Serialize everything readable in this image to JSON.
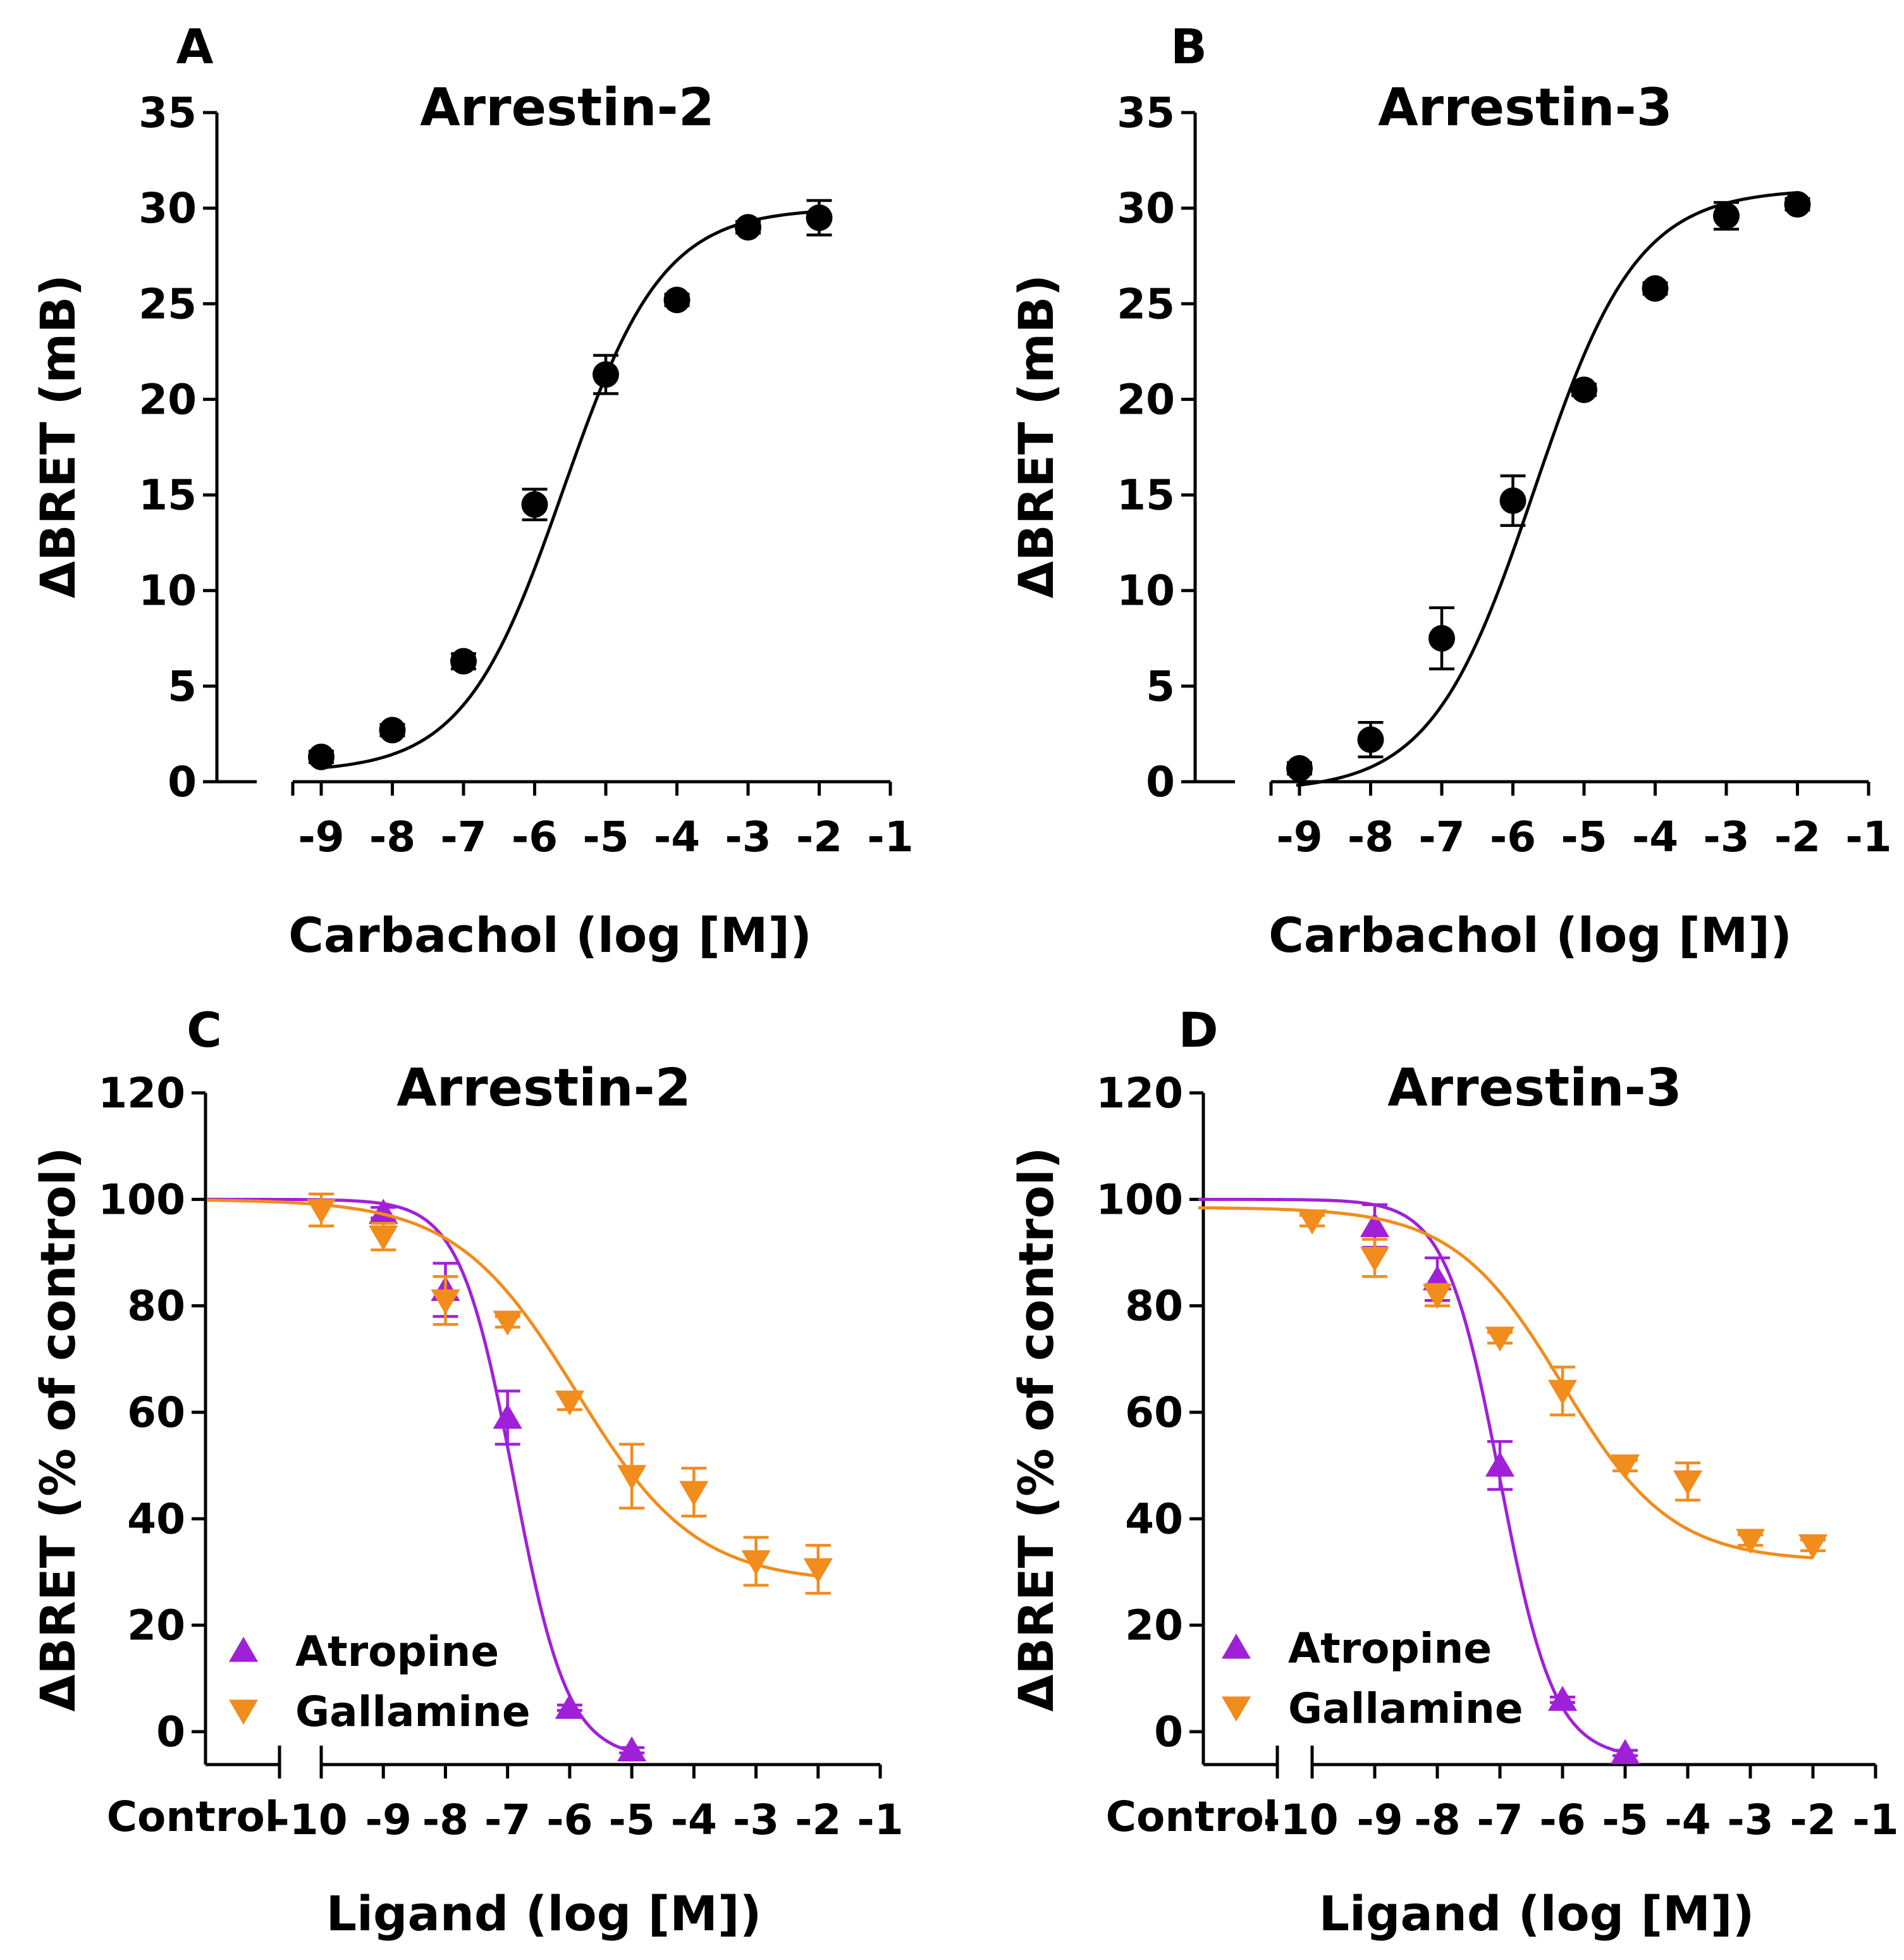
{
  "colors": {
    "black": "#000000",
    "atropine": "#A020D8",
    "gallamine": "#F28C1C"
  },
  "chart_data": [
    {
      "panel": "A",
      "type": "scatter",
      "title": "Arrestin-2",
      "xlabel": "Carbachol (log [M])",
      "ylabel": "ΔBRET (mB)",
      "xlim": [
        -9.4,
        -0.9
      ],
      "ylim": [
        0,
        35
      ],
      "xticks": [
        -9,
        -8,
        -7,
        -6,
        -5,
        -4,
        -3,
        -2,
        -1
      ],
      "xtick_labels": [
        "-9",
        "-8",
        "-7",
        "-6",
        "-5",
        "-4",
        "-3",
        "-2",
        "-1"
      ],
      "yticks": [
        0,
        5,
        10,
        15,
        20,
        25,
        30,
        35
      ],
      "ytick_labels": [
        "0",
        "5",
        "10",
        "15",
        "20",
        "25",
        "30",
        "35"
      ],
      "series": [
        {
          "name": "Carbachol",
          "color": "#000000",
          "marker": "circle",
          "x": [
            -9,
            -8,
            -7,
            -6,
            -5,
            -4,
            -3,
            -2
          ],
          "y": [
            1.3,
            2.7,
            6.3,
            14.5,
            21.3,
            25.2,
            29.0,
            29.5
          ],
          "err": [
            0.3,
            0.3,
            0.4,
            0.8,
            1.0,
            0.3,
            0.3,
            0.9
          ],
          "fit": {
            "bottom": 0.5,
            "top": 30.0,
            "logEC50": -5.6,
            "hill": 0.62
          }
        }
      ]
    },
    {
      "panel": "B",
      "type": "scatter",
      "title": "Arrestin-3",
      "xlabel": "Carbachol (log [M])",
      "ylabel": "ΔBRET (mB)",
      "xlim": [
        -9.4,
        -0.9
      ],
      "ylim": [
        0,
        35
      ],
      "xticks": [
        -9,
        -8,
        -7,
        -6,
        -5,
        -4,
        -3,
        -2,
        -1
      ],
      "xtick_labels": [
        "-9",
        "-8",
        "-7",
        "-6",
        "-5",
        "-4",
        "-3",
        "-2",
        "-1"
      ],
      "yticks": [
        0,
        5,
        10,
        15,
        20,
        25,
        30,
        35
      ],
      "ytick_labels": [
        "0",
        "5",
        "10",
        "15",
        "20",
        "25",
        "30",
        "35"
      ],
      "series": [
        {
          "name": "Carbachol",
          "color": "#000000",
          "marker": "circle",
          "x": [
            -9,
            -8,
            -7,
            -6,
            -5,
            -4,
            -3,
            -2
          ],
          "y": [
            0.7,
            2.2,
            7.5,
            14.7,
            20.5,
            25.8,
            29.6,
            30.2
          ],
          "err": [
            0.3,
            0.9,
            1.6,
            1.3,
            0.3,
            0.3,
            0.7,
            0.3
          ],
          "fit": {
            "bottom": -0.5,
            "top": 31.0,
            "logEC50": -5.7,
            "hill": 0.6
          }
        }
      ]
    },
    {
      "panel": "C",
      "type": "scatter",
      "title": "Arrestin-2",
      "xlabel": "Ligand (log [M])",
      "ylabel": "ΔBRET  (% of control)",
      "xlim": [
        -11.8,
        -0.9
      ],
      "ylim": [
        -5,
        120
      ],
      "control_label": "Control",
      "xticks": [
        -10,
        -9,
        -8,
        -7,
        -6,
        -5,
        -4,
        -3,
        -2,
        -1
      ],
      "xtick_labels": [
        "-10",
        "-9",
        "-8",
        "-7",
        "-6",
        "-5",
        "-4",
        "-3",
        "-2",
        "-1"
      ],
      "yticks": [
        0,
        20,
        40,
        60,
        80,
        100,
        120
      ],
      "ytick_labels": [
        "0",
        "20",
        "40",
        "60",
        "80",
        "100",
        "120"
      ],
      "legend": [
        "Atropine",
        "Gallamine"
      ],
      "legend_position": "bottom-left",
      "series": [
        {
          "name": "Atropine",
          "color": "#A020D8",
          "marker": "triangle-up",
          "x": [
            -9,
            -8,
            -7,
            -6,
            -5
          ],
          "y": [
            97.5,
            83,
            59,
            4.5,
            -3.5
          ],
          "err": [
            1.0,
            5.0,
            5.0,
            0.5,
            0.5
          ],
          "fit": {
            "bottom": -5,
            "top": 100,
            "logIC50": -6.9,
            "hill": 1.0
          }
        },
        {
          "name": "Gallamine",
          "color": "#F28C1C",
          "marker": "triangle-down",
          "x": [
            -10,
            -9,
            -8,
            -7,
            -6,
            -5,
            -4,
            -3,
            -2
          ],
          "y": [
            98,
            93,
            81,
            77,
            62,
            48,
            45,
            32,
            30.5
          ],
          "err": [
            3.0,
            2.5,
            4.5,
            1.0,
            1.5,
            6.0,
            4.5,
            4.5,
            4.5
          ],
          "fit": {
            "bottom": 28,
            "top": 100,
            "logIC50": -5.9,
            "hill": 0.45
          }
        }
      ]
    },
    {
      "panel": "D",
      "type": "scatter",
      "title": "Arrestin-3",
      "xlabel": "Ligand (log [M])",
      "ylabel": "ΔBRET  (% of control)",
      "xlim": [
        -11.8,
        -0.9
      ],
      "ylim": [
        -5,
        120
      ],
      "control_label": "Control",
      "xticks": [
        -10,
        -9,
        -8,
        -7,
        -6,
        -5,
        -4,
        -3,
        -2,
        -1
      ],
      "xtick_labels": [
        "-10",
        "-9",
        "-8",
        "-7",
        "-6",
        "-5",
        "-4",
        "-3",
        "-2",
        "-1"
      ],
      "yticks": [
        0,
        20,
        40,
        60,
        80,
        100,
        120
      ],
      "ytick_labels": [
        "0",
        "20",
        "40",
        "60",
        "80",
        "100",
        "120"
      ],
      "legend": [
        "Atropine",
        "Gallamine"
      ],
      "legend_position": "bottom-left",
      "series": [
        {
          "name": "Atropine",
          "color": "#A020D8",
          "marker": "triangle-up",
          "x": [
            -9,
            -8,
            -7,
            -6,
            -5
          ],
          "y": [
            95,
            85,
            50,
            6,
            -4
          ],
          "err": [
            4.0,
            4.0,
            4.5,
            0.5,
            0.5
          ],
          "fit": {
            "bottom": -5,
            "top": 100,
            "logIC50": -7.0,
            "hill": 1.0
          }
        },
        {
          "name": "Gallamine",
          "color": "#F28C1C",
          "marker": "triangle-down",
          "x": [
            -10,
            -9,
            -8,
            -7,
            -6,
            -5,
            -4,
            -3,
            -2
          ],
          "y": [
            96,
            89,
            82,
            74,
            64,
            50,
            47,
            36,
            35
          ],
          "err": [
            1.0,
            3.5,
            2.0,
            1.0,
            4.5,
            1.0,
            3.5,
            1.0,
            1.0
          ],
          "fit": {
            "bottom": 32,
            "top": 98.5,
            "logIC50": -6.0,
            "hill": 0.5
          }
        }
      ]
    }
  ]
}
